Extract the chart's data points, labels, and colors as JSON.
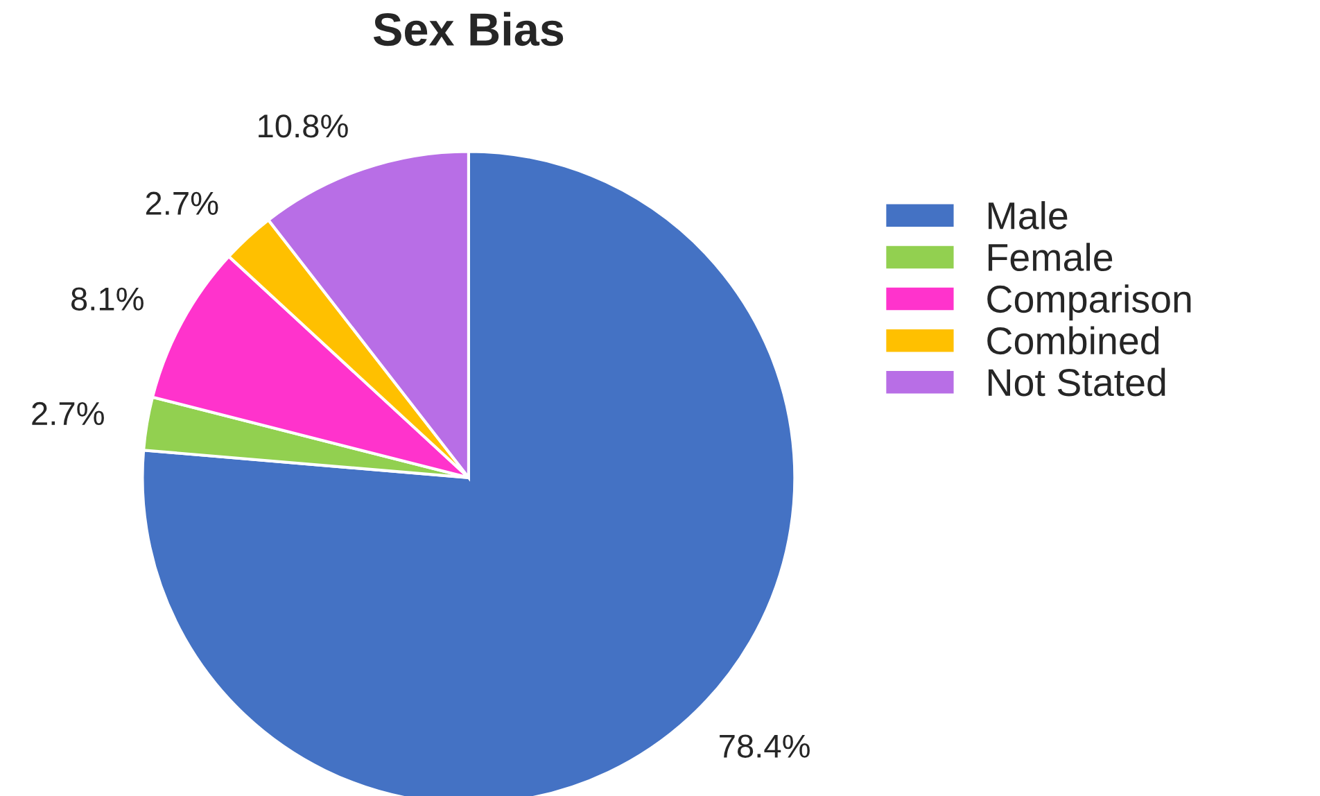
{
  "chart_data": {
    "type": "pie",
    "title": "Sex Bias",
    "categories": [
      "Male",
      "Female",
      "Comparison",
      "Combined",
      "Not Stated"
    ],
    "values": [
      78.4,
      2.7,
      8.1,
      2.7,
      10.8
    ],
    "value_labels": [
      "78.4%",
      "2.7%",
      "8.1%",
      "2.7%",
      "10.8%"
    ],
    "colors": [
      "#4472c4",
      "#92d050",
      "#ff33cc",
      "#ffc000",
      "#b86ee6"
    ],
    "legend": "right"
  }
}
